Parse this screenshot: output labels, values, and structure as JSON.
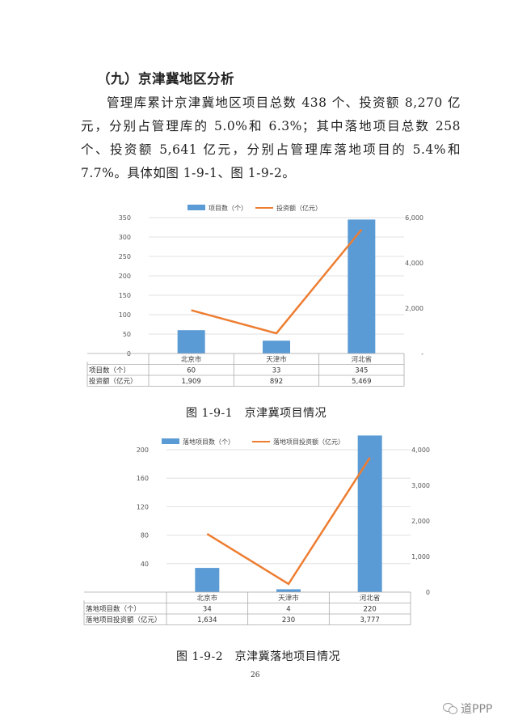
{
  "heading": "（九）京津冀地区分析",
  "paragraph": "管理库累计京津冀地区项目总数 438 个、投资额 8,270 亿元，分别占管理库的 5.0%和 6.3%；其中落地项目总数 258 个、投资额 5,641 亿元，分别占管理库落地项目的 5.4%和 7.7%。具体如图 1-9-1、图 1-9-2。",
  "caption1": "图 1-9-1　京津冀项目情况",
  "caption2": "图 1-9-2　京津冀落地项目情况",
  "page_number": "26",
  "watermark": "道PPP",
  "colors": {
    "bar": "#5b9bd5",
    "line": "#ed7d31"
  },
  "chart_data": [
    {
      "type": "bar",
      "categories": [
        "北京市",
        "天津市",
        "河北省"
      ],
      "series": [
        {
          "name": "项目数（个）",
          "kind": "bar",
          "axis": "left",
          "values": [
            60,
            33,
            345
          ],
          "labels": [
            "60",
            "33",
            "345"
          ]
        },
        {
          "name": "投资额（亿元）",
          "kind": "line",
          "axis": "right",
          "values": [
            1909,
            892,
            5469
          ],
          "labels": [
            "1,909",
            "892",
            "5,469"
          ]
        }
      ],
      "left_axis": {
        "min": 0,
        "max": 350,
        "ticks": [
          "0",
          "50",
          "100",
          "150",
          "200",
          "250",
          "300",
          "350"
        ]
      },
      "right_axis": {
        "min": 0,
        "max": 6000,
        "ticks": [
          "-",
          "2,000",
          "4,000",
          "6,000"
        ],
        "tick_values": [
          0,
          2000,
          4000,
          6000
        ]
      },
      "grid": true,
      "legend": "top",
      "data_table": true
    },
    {
      "type": "bar",
      "categories": [
        "北京市",
        "天津市",
        "河北省"
      ],
      "series": [
        {
          "name": "落地项目数（个）",
          "kind": "bar",
          "axis": "left",
          "values": [
            34,
            4,
            220
          ],
          "labels": [
            "34",
            "4",
            "220"
          ]
        },
        {
          "name": "落地项目投资额（亿元）",
          "kind": "line",
          "axis": "right",
          "values": [
            1634,
            230,
            3777
          ],
          "labels": [
            "1,634",
            "230",
            "3,777"
          ]
        }
      ],
      "left_axis": {
        "min": 0,
        "max": 200,
        "ticks": [
          "",
          "40",
          "80",
          "120",
          "160",
          "200"
        ],
        "tick_values": [
          0,
          40,
          80,
          120,
          160,
          200
        ]
      },
      "right_axis": {
        "min": 0,
        "max": 4000,
        "ticks": [
          "0",
          "1,000",
          "2,000",
          "3,000",
          "4,000"
        ],
        "tick_values": [
          0,
          1000,
          2000,
          3000,
          4000
        ]
      },
      "grid": true,
      "legend": "top",
      "data_table": true
    }
  ]
}
